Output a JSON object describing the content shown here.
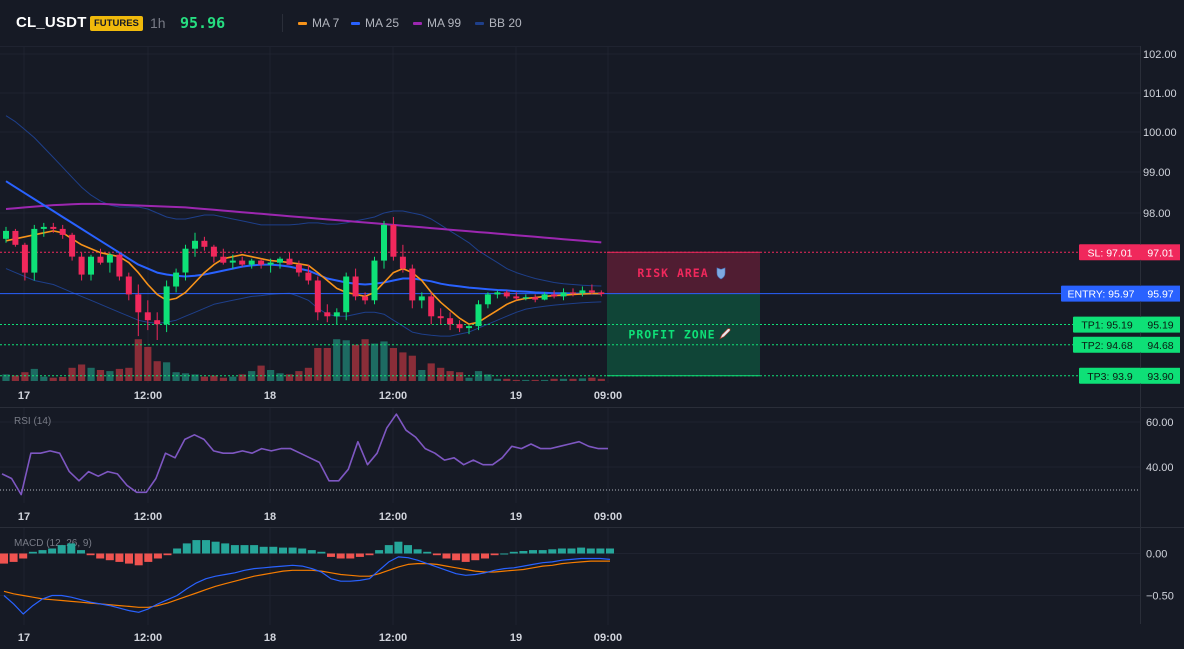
{
  "header": {
    "symbol": "CL_USDT",
    "market_badge": "FUTURES",
    "interval": "1h",
    "last_price": "95.96",
    "indicators": [
      {
        "label": "MA 7",
        "color": "#f7931a"
      },
      {
        "label": "MA 25",
        "color": "#2962ff"
      },
      {
        "label": "MA 99",
        "color": "#9c27b0"
      },
      {
        "label": "BB 20",
        "color": "#1e3f8a"
      }
    ]
  },
  "colors": {
    "background": "#161a25",
    "up": "#0ee077",
    "down": "#f0285c",
    "volume_up": "#1d6b62",
    "volume_down": "#8a2d38",
    "grid": "#1f2330",
    "rsi_line": "#7e57c2",
    "macd_line": "#2962ff",
    "signal_line": "#f57c00",
    "hist_up": "#26a69a",
    "hist_down": "#ef5350",
    "sl": "#f0285c",
    "entry": "#2962ff",
    "tp": "#0ee077"
  },
  "price_axis": {
    "ticks": [
      "102.00",
      "101.00",
      "100.00",
      "99.00",
      "98.00"
    ],
    "ylim": [
      93.3,
      102.4
    ]
  },
  "time_axis": {
    "ticks": [
      "17",
      "12:00",
      "18",
      "12:00",
      "19",
      "09:00"
    ]
  },
  "trade": {
    "sl": {
      "price": 97.01,
      "tag": "SL: 97.01",
      "axis": "97.01"
    },
    "entry": {
      "price": 95.97,
      "tag": "ENTRY: 95.97",
      "axis": "95.97"
    },
    "tp1": {
      "price": 95.19,
      "tag": "TP1: 95.19",
      "axis": "95.19"
    },
    "tp2": {
      "price": 94.68,
      "tag": "TP2: 94.68",
      "axis": "94.68"
    },
    "tp3": {
      "price": 93.9,
      "tag": "TP3: 93.9",
      "axis": "93.90"
    },
    "risk_label": "RISK AREA",
    "profit_label": "PROFIT ZONE"
  },
  "rsi": {
    "title": "RSI (14)",
    "ticks": [
      "60.00",
      "40.00"
    ],
    "ylim": [
      26,
      69
    ],
    "oversold_level": 30,
    "values": [
      37,
      35,
      28,
      46,
      46,
      47,
      46,
      38,
      34,
      38,
      36,
      38,
      37,
      32,
      29,
      29,
      35,
      46,
      44,
      52,
      54,
      52,
      47,
      46,
      46,
      47,
      46,
      48,
      47,
      48,
      48,
      46,
      44,
      42,
      34,
      34,
      39,
      51,
      41,
      46,
      57,
      63,
      56,
      53,
      48,
      46,
      43,
      44,
      41,
      43,
      41,
      41,
      44,
      49,
      48,
      50,
      48,
      48,
      49,
      50,
      51,
      49,
      48,
      48
    ]
  },
  "macd": {
    "title": "MACD (12, 26, 9)",
    "ticks": [
      "0.00",
      "−0.50"
    ],
    "ylim": [
      -0.9,
      0.22
    ],
    "hist": [
      -0.12,
      -0.1,
      -0.06,
      0.02,
      0.04,
      0.06,
      0.1,
      0.12,
      0.04,
      -0.02,
      -0.06,
      -0.08,
      -0.1,
      -0.12,
      -0.14,
      -0.1,
      -0.06,
      -0.02,
      0.06,
      0.12,
      0.16,
      0.16,
      0.14,
      0.12,
      0.1,
      0.1,
      0.1,
      0.08,
      0.08,
      0.07,
      0.07,
      0.06,
      0.04,
      0.02,
      -0.04,
      -0.06,
      -0.06,
      -0.04,
      -0.02,
      0.04,
      0.1,
      0.14,
      0.1,
      0.05,
      0.02,
      -0.02,
      -0.06,
      -0.08,
      -0.1,
      -0.08,
      -0.06,
      -0.02,
      0.0,
      0.02,
      0.03,
      0.04,
      0.04,
      0.05,
      0.06,
      0.06,
      0.07,
      0.06,
      0.06,
      0.06
    ],
    "macd": [
      -0.5,
      -0.6,
      -0.72,
      -0.62,
      -0.54,
      -0.5,
      -0.5,
      -0.52,
      -0.55,
      -0.58,
      -0.6,
      -0.62,
      -0.65,
      -0.68,
      -0.7,
      -0.66,
      -0.6,
      -0.55,
      -0.5,
      -0.42,
      -0.35,
      -0.3,
      -0.27,
      -0.25,
      -0.23,
      -0.2,
      -0.18,
      -0.17,
      -0.16,
      -0.15,
      -0.14,
      -0.15,
      -0.18,
      -0.22,
      -0.3,
      -0.33,
      -0.33,
      -0.32,
      -0.3,
      -0.2,
      -0.1,
      -0.04,
      -0.05,
      -0.08,
      -0.12,
      -0.16,
      -0.2,
      -0.24,
      -0.26,
      -0.25,
      -0.23,
      -0.2,
      -0.18,
      -0.17,
      -0.15,
      -0.13,
      -0.11,
      -0.1,
      -0.08,
      -0.07,
      -0.06,
      -0.06,
      -0.06,
      -0.07
    ],
    "signal": [
      -0.45,
      -0.48,
      -0.5,
      -0.52,
      -0.54,
      -0.55,
      -0.56,
      -0.57,
      -0.58,
      -0.59,
      -0.6,
      -0.61,
      -0.62,
      -0.63,
      -0.64,
      -0.64,
      -0.62,
      -0.59,
      -0.55,
      -0.51,
      -0.47,
      -0.43,
      -0.39,
      -0.36,
      -0.33,
      -0.3,
      -0.27,
      -0.25,
      -0.23,
      -0.21,
      -0.2,
      -0.2,
      -0.2,
      -0.21,
      -0.23,
      -0.25,
      -0.26,
      -0.27,
      -0.27,
      -0.24,
      -0.2,
      -0.16,
      -0.13,
      -0.12,
      -0.12,
      -0.13,
      -0.15,
      -0.17,
      -0.19,
      -0.21,
      -0.22,
      -0.22,
      -0.21,
      -0.2,
      -0.19,
      -0.17,
      -0.15,
      -0.14,
      -0.12,
      -0.11,
      -0.1,
      -0.09,
      -0.09,
      -0.09
    ]
  },
  "chart_data": {
    "type": "candlestick",
    "ylim": [
      93.3,
      102.4
    ],
    "candles": [
      [
        97.35,
        97.65,
        97.25,
        97.55
      ],
      [
        97.55,
        97.6,
        97.15,
        97.2
      ],
      [
        97.2,
        97.25,
        96.3,
        96.5
      ],
      [
        96.5,
        97.7,
        96.3,
        97.6
      ],
      [
        97.6,
        97.75,
        97.4,
        97.65
      ],
      [
        97.65,
        97.75,
        97.5,
        97.6
      ],
      [
        97.6,
        97.7,
        97.35,
        97.45
      ],
      [
        97.45,
        97.5,
        96.8,
        96.9
      ],
      [
        96.9,
        97.0,
        96.3,
        96.45
      ],
      [
        96.45,
        96.95,
        96.3,
        96.9
      ],
      [
        96.9,
        97.1,
        96.7,
        96.75
      ],
      [
        96.75,
        97.0,
        96.5,
        96.95
      ],
      [
        96.95,
        97.0,
        96.3,
        96.4
      ],
      [
        96.4,
        96.5,
        95.8,
        95.95
      ],
      [
        95.95,
        96.2,
        94.9,
        95.5
      ],
      [
        95.5,
        95.8,
        95.05,
        95.3
      ],
      [
        95.3,
        95.5,
        94.8,
        95.2
      ],
      [
        95.2,
        96.3,
        95.0,
        96.15
      ],
      [
        96.15,
        96.6,
        96.0,
        96.5
      ],
      [
        96.5,
        97.2,
        96.3,
        97.1
      ],
      [
        97.1,
        97.5,
        96.9,
        97.3
      ],
      [
        97.3,
        97.4,
        97.05,
        97.15
      ],
      [
        97.15,
        97.2,
        96.75,
        96.9
      ],
      [
        96.9,
        97.1,
        96.7,
        96.75
      ],
      [
        96.75,
        96.95,
        96.6,
        96.8
      ],
      [
        96.8,
        96.9,
        96.65,
        96.7
      ],
      [
        96.7,
        96.85,
        96.6,
        96.8
      ],
      [
        96.8,
        96.85,
        96.6,
        96.7
      ],
      [
        96.7,
        96.85,
        96.5,
        96.75
      ],
      [
        96.75,
        96.9,
        96.6,
        96.85
      ],
      [
        96.85,
        97.0,
        96.7,
        96.7
      ],
      [
        96.7,
        96.8,
        96.4,
        96.5
      ],
      [
        96.5,
        96.7,
        96.2,
        96.3
      ],
      [
        96.3,
        96.4,
        95.3,
        95.5
      ],
      [
        95.5,
        95.7,
        95.25,
        95.4
      ],
      [
        95.4,
        95.6,
        95.2,
        95.5
      ],
      [
        95.5,
        96.5,
        95.3,
        96.4
      ],
      [
        96.4,
        96.6,
        95.8,
        95.9
      ],
      [
        95.9,
        96.0,
        95.7,
        95.8
      ],
      [
        95.8,
        96.9,
        95.7,
        96.8
      ],
      [
        96.8,
        97.8,
        96.6,
        97.7
      ],
      [
        97.7,
        97.9,
        96.8,
        96.9
      ],
      [
        96.9,
        97.2,
        96.5,
        96.6
      ],
      [
        96.6,
        96.7,
        95.6,
        95.8
      ],
      [
        95.8,
        96.0,
        95.6,
        95.9
      ],
      [
        95.9,
        96.0,
        95.2,
        95.4
      ],
      [
        95.4,
        95.6,
        95.2,
        95.35
      ],
      [
        95.35,
        95.5,
        95.05,
        95.2
      ],
      [
        95.2,
        95.3,
        95.0,
        95.1
      ],
      [
        95.1,
        95.2,
        94.95,
        95.15
      ],
      [
        95.15,
        95.8,
        95.05,
        95.7
      ],
      [
        95.7,
        96.0,
        95.6,
        95.95
      ],
      [
        95.95,
        96.05,
        95.85,
        96.0
      ],
      [
        96.0,
        96.05,
        95.85,
        95.9
      ],
      [
        95.9,
        96.0,
        95.8,
        95.85
      ],
      [
        95.85,
        95.95,
        95.8,
        95.88
      ],
      [
        95.88,
        95.95,
        95.75,
        95.82
      ],
      [
        95.82,
        96.0,
        95.8,
        95.95
      ],
      [
        95.95,
        96.05,
        95.85,
        95.9
      ],
      [
        95.9,
        96.1,
        95.8,
        96.0
      ],
      [
        96.0,
        96.1,
        95.9,
        95.98
      ],
      [
        95.98,
        96.15,
        95.9,
        96.05
      ],
      [
        96.05,
        96.2,
        95.95,
        96.0
      ],
      [
        96.0,
        96.05,
        95.9,
        95.96
      ]
    ],
    "volumes": [
      0.3,
      0.25,
      0.4,
      0.55,
      0.2,
      0.15,
      0.18,
      0.6,
      0.75,
      0.6,
      0.5,
      0.45,
      0.55,
      0.6,
      1.9,
      1.55,
      0.9,
      0.85,
      0.4,
      0.35,
      0.3,
      0.2,
      0.25,
      0.15,
      0.2,
      0.3,
      0.45,
      0.7,
      0.5,
      0.35,
      0.3,
      0.45,
      0.6,
      1.5,
      1.5,
      1.9,
      1.85,
      1.65,
      1.9,
      1.7,
      1.8,
      1.5,
      1.3,
      1.15,
      0.5,
      0.8,
      0.6,
      0.45,
      0.4,
      0.15,
      0.45,
      0.3,
      0.1,
      0.1,
      0.05,
      0.05,
      0.05,
      0.05,
      0.1,
      0.1,
      0.1,
      0.12,
      0.15,
      0.1
    ],
    "ma7": [
      97.3,
      97.35,
      97.4,
      97.45,
      97.5,
      97.55,
      97.5,
      97.35,
      97.2,
      97.1,
      97.0,
      96.95,
      96.9,
      96.75,
      96.5,
      96.2,
      95.95,
      95.8,
      95.85,
      96.0,
      96.25,
      96.5,
      96.7,
      96.85,
      96.9,
      96.95,
      96.9,
      96.85,
      96.8,
      96.78,
      96.75,
      96.72,
      96.68,
      96.5,
      96.3,
      96.1,
      96.0,
      95.95,
      95.9,
      96.0,
      96.25,
      96.5,
      96.6,
      96.5,
      96.3,
      96.0,
      95.75,
      95.55,
      95.35,
      95.2,
      95.25,
      95.4,
      95.55,
      95.7,
      95.8,
      95.85,
      95.87,
      95.9,
      95.92,
      95.93,
      95.95,
      95.96,
      95.97,
      95.97
    ],
    "ma25": [
      98.8,
      98.65,
      98.5,
      98.35,
      98.2,
      98.05,
      97.9,
      97.75,
      97.6,
      97.45,
      97.3,
      97.15,
      97.0,
      96.85,
      96.7,
      96.6,
      96.5,
      96.45,
      96.42,
      96.4,
      96.42,
      96.45,
      96.5,
      96.55,
      96.6,
      96.65,
      96.68,
      96.7,
      96.7,
      96.68,
      96.65,
      96.6,
      96.55,
      96.45,
      96.35,
      96.3,
      96.25,
      96.22,
      96.2,
      96.22,
      96.25,
      96.3,
      96.35,
      96.35,
      96.32,
      96.28,
      96.22,
      96.18,
      96.15,
      96.12,
      96.1,
      96.08,
      96.06,
      96.05,
      96.03,
      96.02,
      96.0,
      95.99,
      95.98,
      95.98,
      95.97,
      95.97,
      95.97,
      95.97
    ],
    "ma99": [
      98.1,
      98.12,
      98.14,
      98.16,
      98.18,
      98.2,
      98.21,
      98.22,
      98.23,
      98.23,
      98.23,
      98.22,
      98.21,
      98.2,
      98.19,
      98.18,
      98.17,
      98.16,
      98.15,
      98.14,
      98.12,
      98.1,
      98.08,
      98.06,
      98.04,
      98.02,
      98.0,
      97.98,
      97.96,
      97.94,
      97.92,
      97.9,
      97.88,
      97.86,
      97.84,
      97.82,
      97.8,
      97.78,
      97.76,
      97.74,
      97.72,
      97.7,
      97.68,
      97.66,
      97.64,
      97.62,
      97.6,
      97.58,
      97.56,
      97.54,
      97.52,
      97.5,
      97.48,
      97.46,
      97.44,
      97.42,
      97.4,
      97.38,
      97.36,
      97.34,
      97.32,
      97.3,
      97.28,
      97.26
    ],
    "bb_upper": [
      100.45,
      100.3,
      100.1,
      99.9,
      99.65,
      99.4,
      99.15,
      98.9,
      98.65,
      98.45,
      98.3,
      98.2,
      98.15,
      98.15,
      98.15,
      98.1,
      98.0,
      97.9,
      97.85,
      97.85,
      97.9,
      97.95,
      97.95,
      97.9,
      97.85,
      97.8,
      97.75,
      97.7,
      97.7,
      97.7,
      97.7,
      97.72,
      97.75,
      97.75,
      97.72,
      97.72,
      97.75,
      97.8,
      97.85,
      97.9,
      98.0,
      98.05,
      98.05,
      98.0,
      97.95,
      97.85,
      97.7,
      97.55,
      97.4,
      97.25,
      97.05,
      96.9,
      96.75,
      96.6,
      96.5,
      96.42,
      96.35,
      96.3,
      96.25,
      96.22,
      96.2,
      96.18,
      96.17,
      96.16
    ],
    "bb_lower": [
      96.6,
      96.5,
      96.4,
      96.3,
      96.25,
      96.2,
      96.1,
      96.0,
      95.9,
      95.8,
      95.7,
      95.6,
      95.5,
      95.4,
      95.3,
      95.25,
      95.22,
      95.25,
      95.3,
      95.4,
      95.5,
      95.6,
      95.7,
      95.75,
      95.8,
      95.85,
      95.9,
      95.92,
      95.95,
      95.97,
      95.98,
      95.9,
      95.8,
      95.6,
      95.45,
      95.4,
      95.4,
      95.45,
      95.5,
      95.5,
      95.45,
      95.3,
      95.15,
      95.0,
      94.95,
      94.92,
      94.9,
      94.9,
      94.95,
      95.0,
      95.1,
      95.2,
      95.3,
      95.4,
      95.5,
      95.58,
      95.62,
      95.65,
      95.68,
      95.7,
      95.72,
      95.74,
      95.75,
      95.76
    ]
  }
}
